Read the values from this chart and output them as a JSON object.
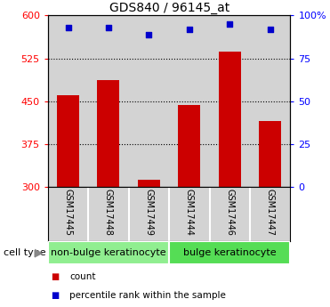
{
  "title": "GDS840 / 96145_at",
  "samples": [
    "GSM17445",
    "GSM17448",
    "GSM17449",
    "GSM17444",
    "GSM17446",
    "GSM17447"
  ],
  "bar_values": [
    460,
    487,
    313,
    443,
    537,
    415
  ],
  "percentile_values": [
    93,
    93,
    89,
    92,
    95,
    92
  ],
  "ylim_left": [
    300,
    600
  ],
  "ylim_right": [
    0,
    100
  ],
  "yticks_left": [
    300,
    375,
    450,
    525,
    600
  ],
  "yticks_right": [
    0,
    25,
    50,
    75,
    100
  ],
  "ytick_labels_right": [
    "0",
    "25",
    "50",
    "75",
    "100%"
  ],
  "bar_color": "#cc0000",
  "scatter_color": "#0000cc",
  "bg_color": "#d3d3d3",
  "cell_type_label": "cell type",
  "cell_groups": [
    {
      "label": "non-bulge keratinocyte",
      "span": 3,
      "color": "#90ee90"
    },
    {
      "label": "bulge keratinocyte",
      "span": 3,
      "color": "#55dd55"
    }
  ],
  "legend_bar_label": "count",
  "legend_scatter_label": "percentile rank within the sample",
  "title_fontsize": 10,
  "tick_fontsize": 8,
  "sample_fontsize": 7,
  "celltype_fontsize": 8,
  "legend_fontsize": 7.5
}
